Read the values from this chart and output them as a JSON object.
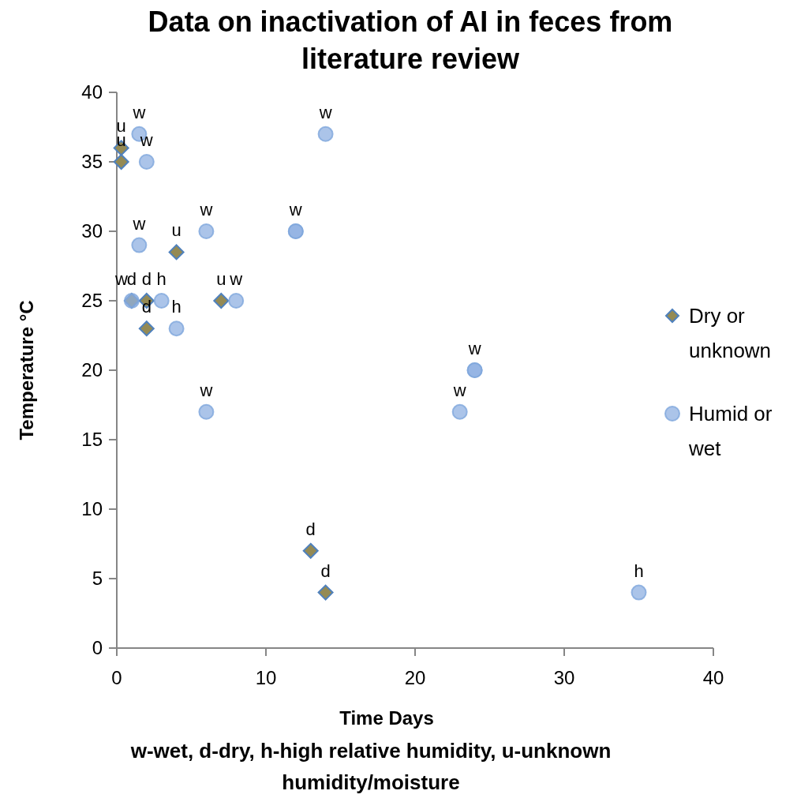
{
  "chart_data": {
    "type": "scatter",
    "title": "Data on inactivation of AI in feces from literature review",
    "xlabel": "Time Days",
    "ylabel": "Temperature °C",
    "annotations": [
      "w-wet,  d-dry, h-high relative humidity, u-unknown humidity/moisture"
    ],
    "xlim": [
      0,
      40
    ],
    "xticks": [
      0,
      10,
      20,
      30,
      40
    ],
    "ylim": [
      0,
      40
    ],
    "yticks": [
      0,
      5,
      10,
      15,
      20,
      25,
      30,
      35,
      40
    ],
    "grid": false,
    "legend": "right",
    "series": [
      {
        "name": "Dry or unknown",
        "color": "#948a54",
        "marker": "diamond",
        "x": [
          0.3,
          0.3,
          1,
          2,
          2,
          4,
          7,
          13,
          14
        ],
        "values": [
          36,
          35,
          25,
          25,
          23,
          28.5,
          25,
          7,
          4
        ],
        "value_labels": [
          "u",
          "u",
          "d",
          "d",
          "d",
          "u",
          "u",
          "d",
          "d"
        ]
      },
      {
        "name": "Humid or wet",
        "color": "#8fb0e2",
        "marker": "circle",
        "x": [
          1.5,
          2,
          1.5,
          1,
          3,
          4,
          6,
          6,
          8,
          12,
          12,
          14,
          23,
          24,
          24,
          35
        ],
        "values": [
          37,
          35,
          29,
          25,
          25,
          23,
          30,
          17,
          25,
          30,
          30,
          37,
          17,
          20,
          20,
          4
        ],
        "value_labels": [
          "w",
          "w",
          "w",
          "w",
          "h",
          "h",
          "w",
          "w",
          "w",
          "w",
          null,
          "w",
          "w",
          "w",
          null,
          "h"
        ]
      }
    ]
  }
}
